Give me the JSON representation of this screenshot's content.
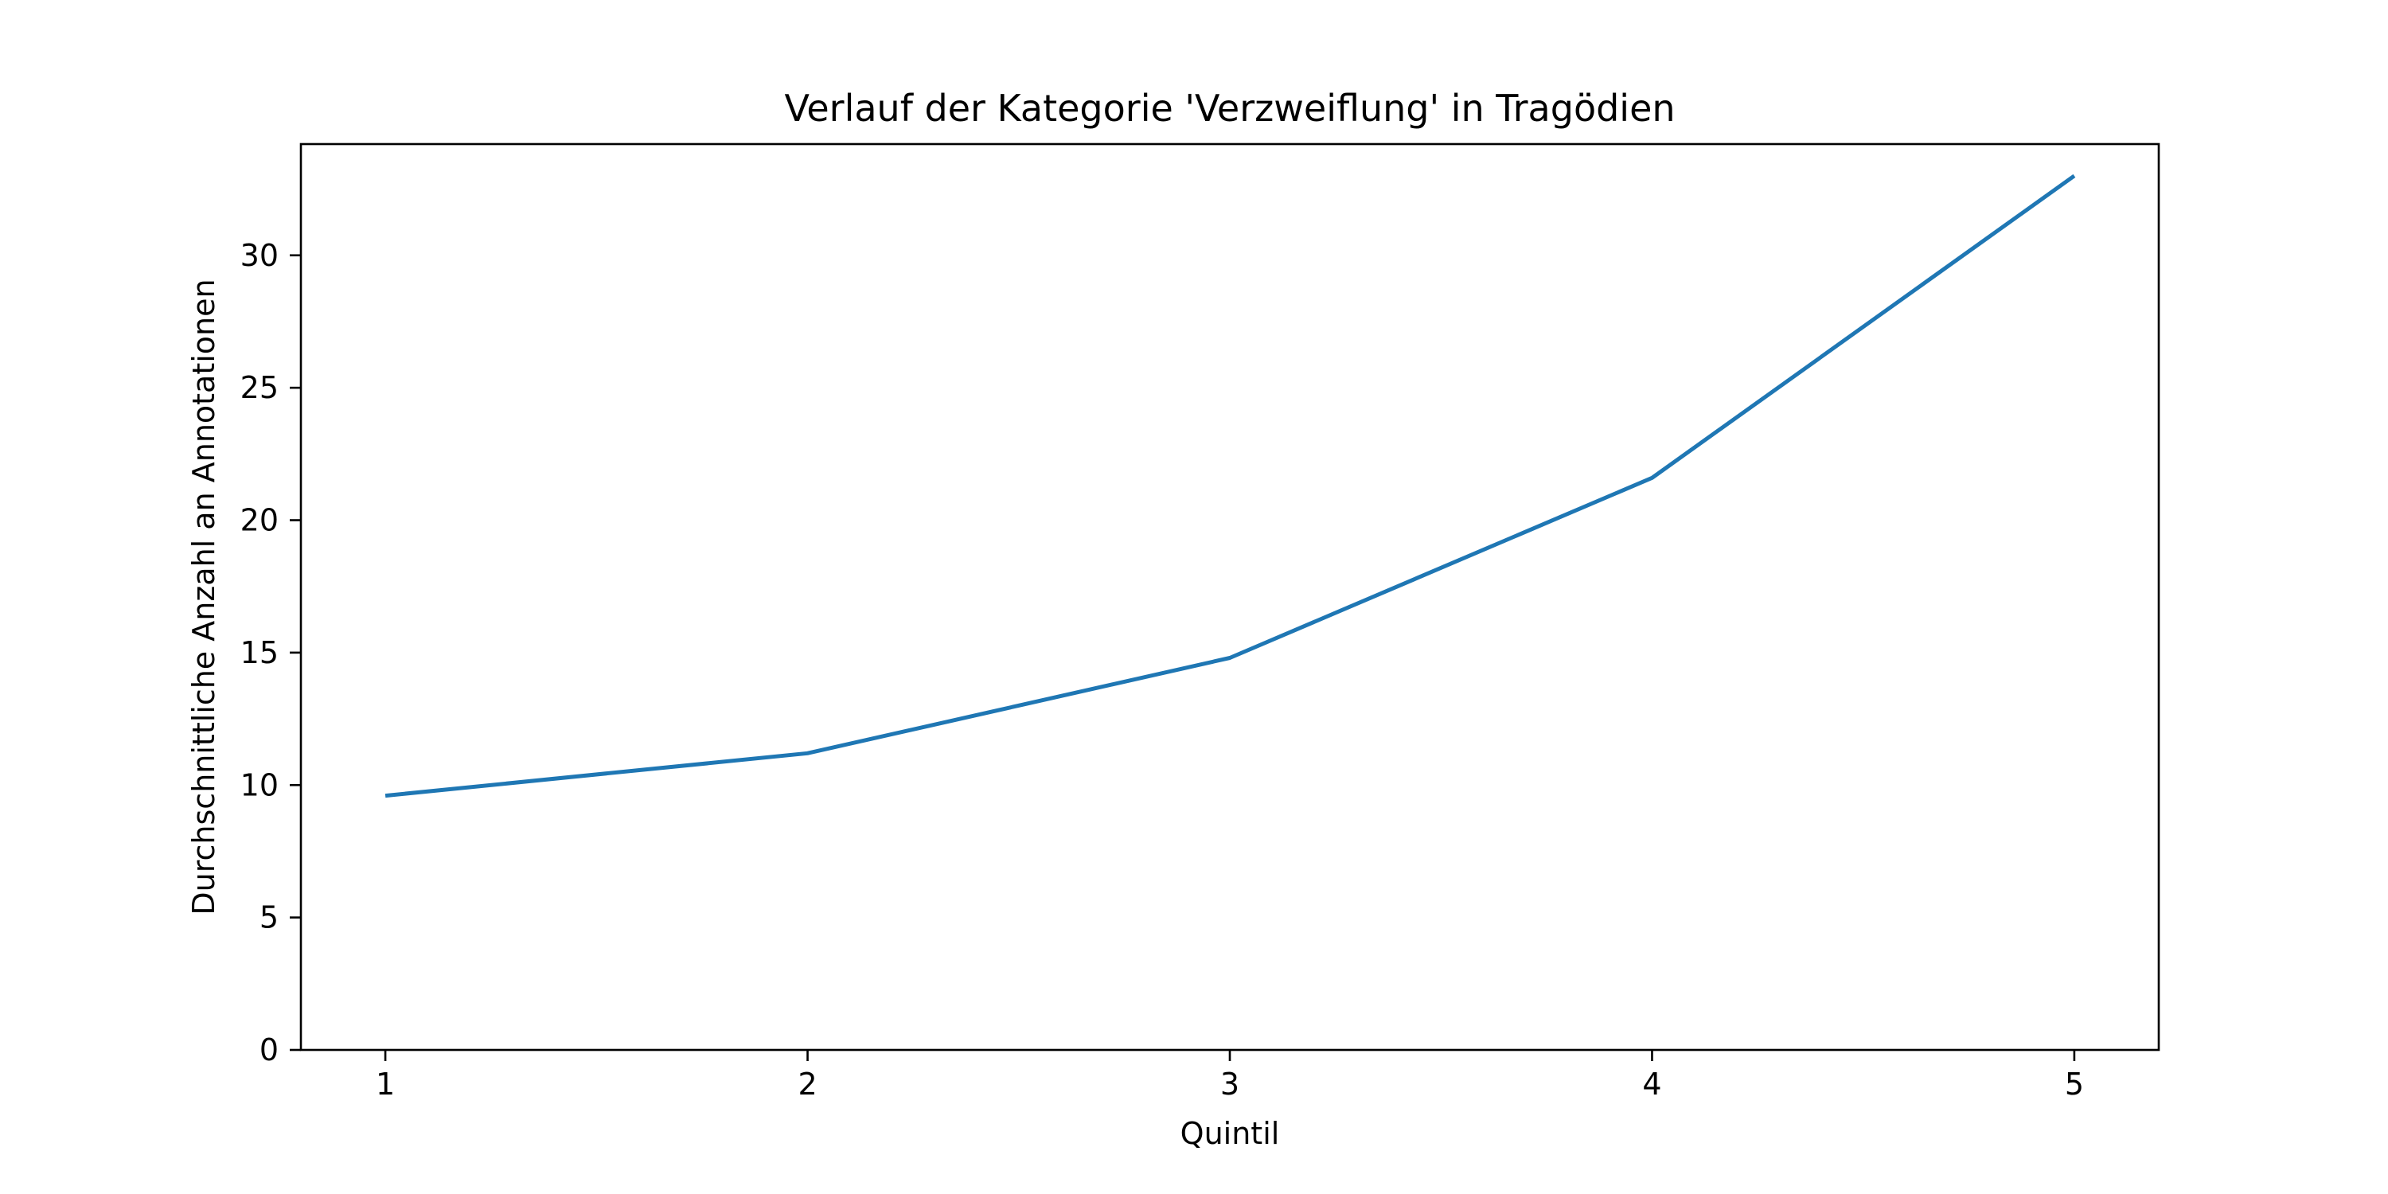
{
  "chart_data": {
    "type": "line",
    "title": "Verlauf der Kategorie 'Verzweiflung' in Tragödien",
    "xlabel": "Quintil",
    "ylabel": "Durchschnittliche Anzahl an Annotationen",
    "x": [
      1,
      2,
      3,
      4,
      5
    ],
    "series": [
      {
        "values": [
          9.6,
          11.2,
          14.8,
          21.6,
          33.0
        ],
        "color": "#1f77b4"
      }
    ],
    "xlim": [
      0.8,
      5.2
    ],
    "ylim": [
      0,
      34.2
    ],
    "xticks": [
      1,
      2,
      3,
      4,
      5
    ],
    "yticks": [
      0,
      5,
      10,
      15,
      20,
      25,
      30
    ],
    "grid": false,
    "legend": "none"
  }
}
